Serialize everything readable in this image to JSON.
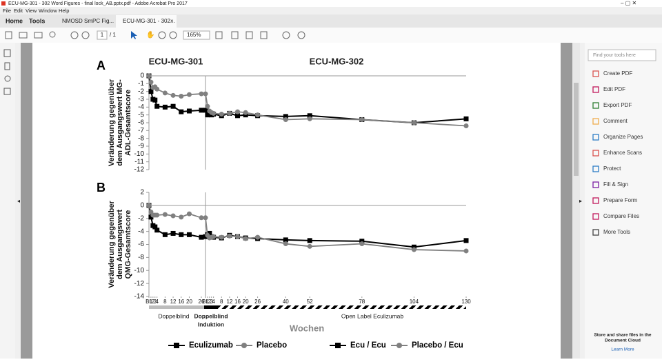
{
  "window": {
    "title": "ECU-MG-301 - 302 Word Figures - final lock_AB.pptx.pdf - Adobe Acrobat Pro 2017",
    "menu": [
      "File",
      "Edit",
      "View",
      "Window",
      "Help"
    ]
  },
  "tabs": [
    "Home",
    "Tools",
    "NMOSD SmPC Fig...",
    "ECU-MG-301 - 302..."
  ],
  "toolbar": {
    "page": "1",
    "pages": "/ 1",
    "zoom": "165%"
  },
  "tools_panel": {
    "search": "Find your tools here",
    "tools": [
      "Create PDF",
      "Edit PDF",
      "Export PDF",
      "Comment",
      "Organize Pages",
      "Enhance Scans",
      "Protect",
      "Fill & Sign",
      "Prepare Form",
      "Compare Files",
      "More Tools"
    ],
    "footer": [
      "Store and share files in the",
      "Document Cloud"
    ],
    "link": "Learn More"
  },
  "figure": {
    "studies": [
      {
        "title": "ECU-MG-301",
        "xlim": [
          0,
          26
        ],
        "xticks": [
          {
            "value": 0,
            "label": "BL"
          },
          1,
          2,
          3,
          4,
          8,
          12,
          16,
          20,
          26
        ]
      },
      {
        "title": "ECU-MG-302",
        "xlim": [
          0,
          130
        ],
        "xticks": [
          {
            "value": 0,
            "label": "BL"
          },
          1,
          2,
          3,
          4,
          8,
          12,
          16,
          20,
          26,
          40,
          52,
          78,
          104,
          130
        ]
      }
    ],
    "phases": [
      "Doppelblind",
      [
        "Doppelblind",
        "Induktion"
      ],
      "Open Label Eculizumab"
    ],
    "xlabel": "Wochen",
    "panels": [
      {
        "label": "A",
        "ylabel": [
          "Veränderung gegenüber",
          "dem Ausgangswert MG-",
          "ADL-Gesamtscore"
        ],
        "ylim": [
          -12,
          0
        ],
        "yticks": [
          0,
          -1,
          -2,
          -3,
          -4,
          -5,
          -6,
          -7,
          -8,
          -9,
          -10,
          -11,
          -12
        ],
        "studies": [
          {
            "series": [
              {
                "name": "Eculizumab",
                "color": "#000000",
                "marker": "square",
                "x": [
                  0,
                  1,
                  2,
                  3,
                  4,
                  8,
                  12,
                  16,
                  20,
                  26
                ],
                "values": [
                  0,
                  -2,
                  -3,
                  -3.1,
                  -3.9,
                  -4.0,
                  -3.9,
                  -4.6,
                  -4.5,
                  -4.4
                ]
              },
              {
                "name": "Placebo",
                "color": "#808080",
                "marker": "circle",
                "x": [
                  0,
                  1,
                  2,
                  3,
                  4,
                  8,
                  12,
                  16,
                  20,
                  26
                ],
                "values": [
                  0,
                  -0.8,
                  -1.5,
                  -1.4,
                  -1.7,
                  -2.2,
                  -2.5,
                  -2.6,
                  -2.4,
                  -2.3
                ]
              }
            ]
          },
          {
            "series": [
              {
                "name": "Ecu / Ecu",
                "color": "#000000",
                "marker": "square",
                "x": [
                  0,
                  1,
                  2,
                  3,
                  4,
                  8,
                  12,
                  16,
                  20,
                  26,
                  40,
                  52,
                  78,
                  104,
                  130
                ],
                "values": [
                  -4.4,
                  -5,
                  -4.8,
                  -5,
                  -4.9,
                  -5.1,
                  -4.8,
                  -5.1,
                  -5.0,
                  -5.1,
                  -5.2,
                  -5.1,
                  -5.6,
                  -6,
                  -5.5
                ]
              },
              {
                "name": "Placebo / Ecu",
                "color": "#808080",
                "marker": "circle",
                "x": [
                  0,
                  1,
                  2,
                  3,
                  4,
                  8,
                  12,
                  16,
                  20,
                  26,
                  40,
                  52,
                  78,
                  104,
                  130
                ],
                "values": [
                  -2.3,
                  -3.9,
                  -4.5,
                  -4.7,
                  -4.8,
                  -4.9,
                  -4.8,
                  -4.6,
                  -4.7,
                  -5.0,
                  -5.6,
                  -5.5,
                  -5.6,
                  -6.0,
                  -6.4
                ]
              }
            ]
          }
        ]
      },
      {
        "label": "B",
        "ylabel": [
          "Veränderung gegenüber",
          "dem Ausgangswert",
          "QMG-Gesamtscore"
        ],
        "ylim": [
          -14,
          2
        ],
        "yticks": [
          2,
          0,
          -2,
          -4,
          -6,
          -8,
          -10,
          -12,
          -14
        ],
        "studies": [
          {
            "series": [
              {
                "color": "#000000",
                "marker": "square",
                "x": [
                  0,
                  1,
                  2,
                  3,
                  4,
                  8,
                  12,
                  16,
                  20,
                  26
                ],
                "values": [
                  0,
                  -1.8,
                  -3.1,
                  -3.3,
                  -3.8,
                  -4.5,
                  -4.3,
                  -4.5,
                  -4.5,
                  -4.9
                ]
              },
              {
                "color": "#808080",
                "marker": "circle",
                "x": [
                  0,
                  1,
                  2,
                  3,
                  4,
                  8,
                  12,
                  16,
                  20,
                  26
                ],
                "values": [
                  0,
                  -1,
                  -1.5,
                  -1.5,
                  -1.5,
                  -1.4,
                  -1.6,
                  -1.8,
                  -1.3,
                  -1.9
                ]
              }
            ]
          },
          {
            "series": [
              {
                "color": "#000000",
                "marker": "square",
                "x": [
                  0,
                  1,
                  2,
                  3,
                  4,
                  8,
                  12,
                  16,
                  20,
                  26,
                  40,
                  52,
                  78,
                  104,
                  130
                ],
                "values": [
                  -4.8,
                  -4.5,
                  -4.3,
                  -4.8,
                  -4.9,
                  -5.0,
                  -4.6,
                  -4.8,
                  -5.0,
                  -5.1,
                  -5.3,
                  -5.4,
                  -5.5,
                  -6.4,
                  -5.4
                ]
              },
              {
                "color": "#808080",
                "marker": "circle",
                "x": [
                  0,
                  1,
                  2,
                  3,
                  4,
                  8,
                  12,
                  16,
                  20,
                  26,
                  40,
                  52,
                  78,
                  104,
                  130
                ],
                "values": [
                  -1.9,
                  -4.6,
                  -5.0,
                  -4.9,
                  -4.8,
                  -4.9,
                  -4.7,
                  -4.8,
                  -5.1,
                  -4.9,
                  -5.9,
                  -6.3,
                  -5.9,
                  -6.8,
                  -7.0
                ]
              }
            ]
          }
        ]
      }
    ]
  }
}
